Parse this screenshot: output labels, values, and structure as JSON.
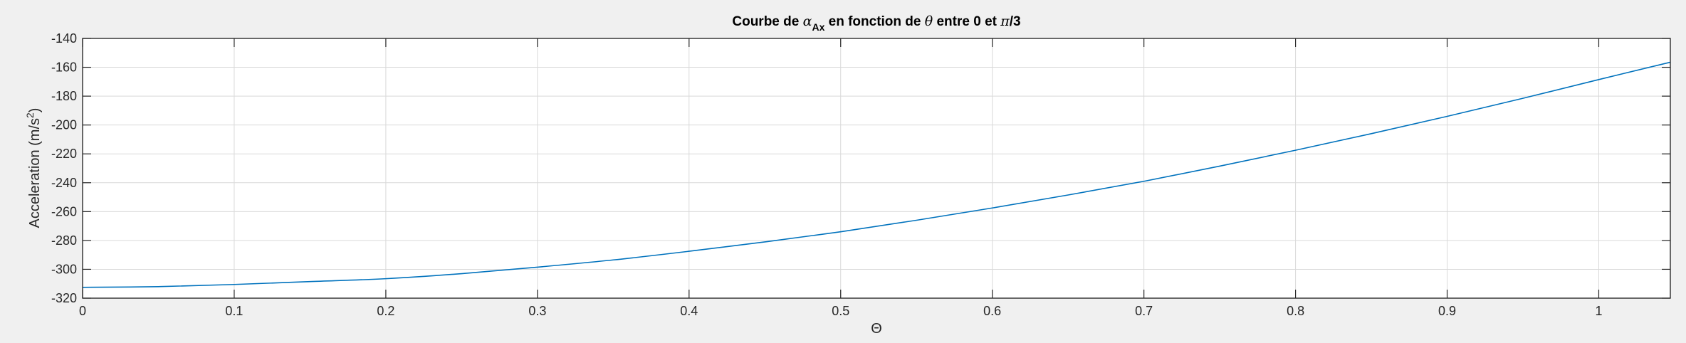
{
  "chart_data": {
    "type": "line",
    "title": {
      "prefix": "Courbe de ",
      "symbol": "α",
      "subscript": "Ax",
      "middle": " en fonction de ",
      "theta": "θ",
      "between": " entre 0 et ",
      "pi": "π",
      "suffix": "/3"
    },
    "xlabel": "Θ",
    "ylabel": "Acceleration (m/s",
    "ylabel_sup": "2",
    "ylabel_end": ")",
    "xlim": [
      0,
      1.0472
    ],
    "ylim": [
      -320,
      -140
    ],
    "xticks": [
      "0",
      "0.1",
      "0.2",
      "0.3",
      "0.4",
      "0.5",
      "0.6",
      "0.7",
      "0.8",
      "0.9",
      "1"
    ],
    "yticks": [
      "-140",
      "-160",
      "-180",
      "-200",
      "-220",
      "-240",
      "-260",
      "-280",
      "-300",
      "-320"
    ],
    "grid": true,
    "line_color": "#0072bd",
    "series": [
      {
        "x": [
          0,
          0.05,
          0.1,
          0.15,
          0.2,
          0.25,
          0.3,
          0.35,
          0.4,
          0.45,
          0.5,
          0.55,
          0.6,
          0.65,
          0.7,
          0.75,
          0.8,
          0.85,
          0.9,
          0.95,
          1.0,
          1.0472
        ],
        "y": [
          -312.5,
          -312.0,
          -310.5,
          -308.5,
          -306.5,
          -303.0,
          -298.5,
          -293.5,
          -287.5,
          -281.0,
          -274.0,
          -266.0,
          -257.5,
          -248.5,
          -239.0,
          -228.5,
          -217.5,
          -206.0,
          -194.0,
          -181.5,
          -168.5,
          -156.5
        ]
      }
    ]
  }
}
